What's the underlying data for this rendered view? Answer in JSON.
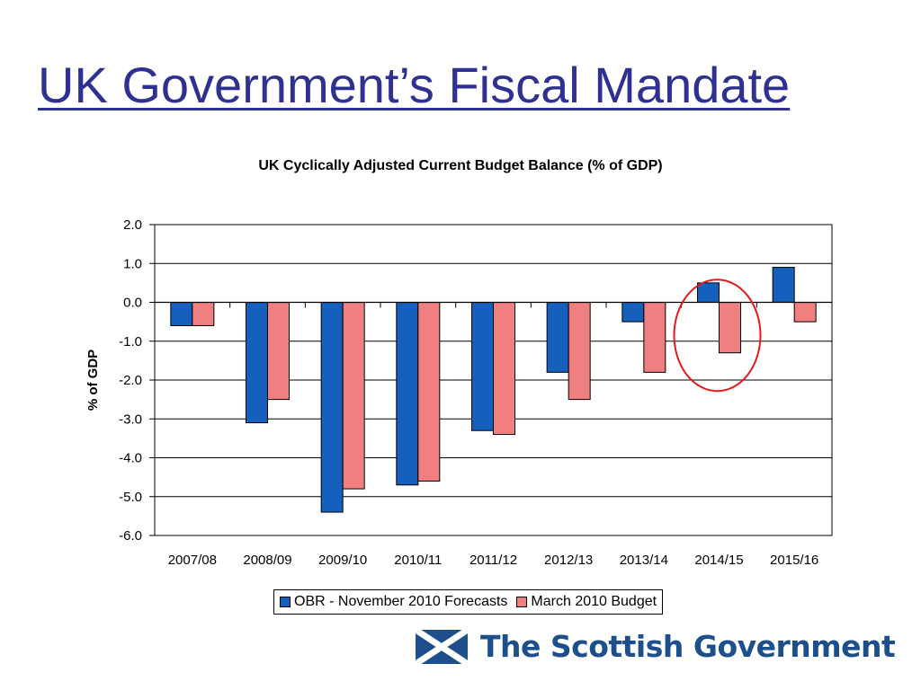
{
  "slide": {
    "title": "UK Government’s Fiscal Mandate",
    "title_color": "#2e3192"
  },
  "brand": {
    "name": "The Scottish Government",
    "icon": "saltire-flag-icon",
    "color": "#1d4f8c"
  },
  "chart_data": {
    "type": "bar",
    "title": "UK Cyclically Adjusted Current Budget Balance (% of GDP)",
    "xlabel": "",
    "ylabel": "% of GDP",
    "ylim": [
      -6.0,
      2.0
    ],
    "yticks": [
      "2.0",
      "1.0",
      "0.0",
      "-1.0",
      "-2.0",
      "-3.0",
      "-4.0",
      "-5.0",
      "-6.0"
    ],
    "categories": [
      "2007/08",
      "2008/09",
      "2009/10",
      "2010/11",
      "2011/12",
      "2012/13",
      "2013/14",
      "2014/15",
      "2015/16"
    ],
    "series": [
      {
        "name": "OBR - November 2010 Forecasts",
        "color": "#1560bd",
        "values": [
          null,
          -3.1,
          -5.4,
          -4.7,
          -3.3,
          -1.8,
          -0.5,
          0.5,
          0.9
        ]
      },
      {
        "name": "March 2010 Budget",
        "color": "#f08080",
        "values": [
          -0.6,
          -2.5,
          -4.8,
          -4.6,
          -3.4,
          -2.5,
          -1.8,
          -1.3,
          -0.5
        ]
      }
    ],
    "first_bar_values": [
      -0.6,
      -0.6
    ],
    "grid": true,
    "legend_position": "bottom",
    "annotation": {
      "type": "red-circle",
      "category": "2014/15"
    }
  }
}
